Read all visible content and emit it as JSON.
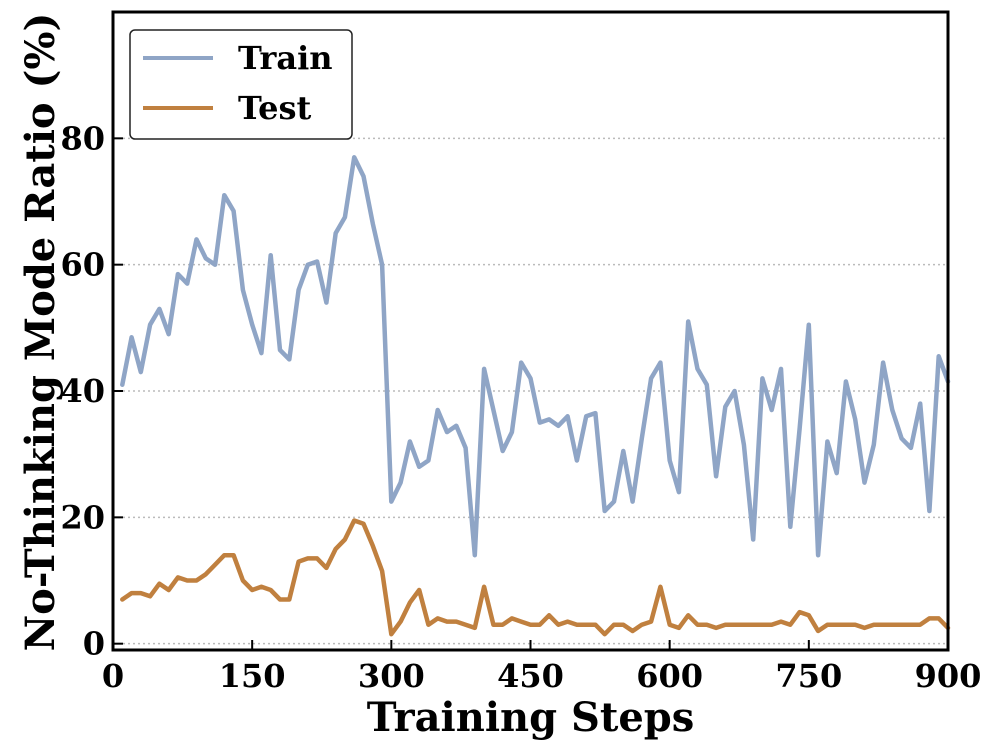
{
  "chart_data": {
    "type": "line",
    "title": "",
    "xlabel": "Training Steps",
    "ylabel": "No-Thinking Mode Ratio (%)",
    "xlim": [
      0,
      900
    ],
    "ylim": [
      -1,
      100
    ],
    "xticks": [
      0,
      150,
      300,
      450,
      600,
      750,
      900
    ],
    "yticks": [
      0,
      20,
      40,
      60,
      80
    ],
    "grid": "horizontal-dotted",
    "legend_position": "top-left",
    "x": [
      10,
      20,
      30,
      40,
      50,
      60,
      70,
      80,
      90,
      100,
      110,
      120,
      130,
      140,
      150,
      160,
      170,
      180,
      190,
      200,
      210,
      220,
      230,
      240,
      250,
      260,
      270,
      280,
      290,
      300,
      310,
      320,
      330,
      340,
      350,
      360,
      370,
      380,
      390,
      400,
      410,
      420,
      430,
      440,
      450,
      460,
      470,
      480,
      490,
      500,
      510,
      520,
      530,
      540,
      550,
      560,
      570,
      580,
      590,
      600,
      610,
      620,
      630,
      640,
      650,
      660,
      670,
      680,
      690,
      700,
      710,
      720,
      730,
      740,
      750,
      760,
      770,
      780,
      790,
      800,
      810,
      820,
      830,
      840,
      850,
      860,
      870,
      880,
      890,
      900
    ],
    "series": [
      {
        "name": "Train",
        "color": "#8fa5c6",
        "values": [
          41,
          48.5,
          43,
          50.5,
          53,
          49,
          58.5,
          57,
          64,
          61,
          60,
          71,
          68.5,
          56,
          50.5,
          46,
          61.5,
          46.5,
          45,
          56,
          60,
          60.5,
          54,
          65,
          67.5,
          77,
          74,
          66.5,
          60,
          22.5,
          25.5,
          32,
          28,
          29,
          37,
          33.5,
          34.5,
          31,
          14,
          43.5,
          37,
          30.5,
          33.5,
          44.5,
          42,
          35,
          35.5,
          34.5,
          36,
          29,
          36,
          36.5,
          21,
          22.5,
          30.5,
          22.5,
          32.5,
          42,
          44.5,
          29,
          24,
          51,
          43.5,
          41,
          26.5,
          37.5,
          40,
          31.5,
          16.5,
          42,
          37,
          43.5,
          18.5,
          34,
          50.5,
          14,
          32,
          27,
          41.5,
          35.5,
          25.5,
          31.5,
          44.5,
          37,
          32.5,
          31,
          38,
          21,
          45.5,
          41.5
        ]
      },
      {
        "name": "Test",
        "color": "#c0803f",
        "values": [
          7,
          8,
          8,
          7.5,
          9.5,
          8.5,
          10.5,
          10,
          10,
          11,
          12.5,
          14,
          14,
          10,
          8.5,
          9,
          8.5,
          7,
          7,
          13,
          13.5,
          13.5,
          12,
          15,
          16.5,
          19.5,
          19,
          15.5,
          11.5,
          1.5,
          3.5,
          6.5,
          8.5,
          3,
          4,
          3.5,
          3.5,
          3,
          2.5,
          9,
          3,
          3,
          4,
          3.5,
          3,
          3,
          4.5,
          3,
          3.5,
          3,
          3,
          3,
          1.5,
          3,
          3,
          2,
          3,
          3.5,
          9,
          3,
          2.5,
          4.5,
          3,
          3,
          2.5,
          3,
          3,
          3,
          3,
          3,
          3,
          3.5,
          3,
          5,
          4.5,
          2,
          3,
          3,
          3,
          3,
          2.5,
          3,
          3,
          3,
          3,
          3,
          3,
          4,
          4,
          2.5
        ]
      }
    ]
  }
}
